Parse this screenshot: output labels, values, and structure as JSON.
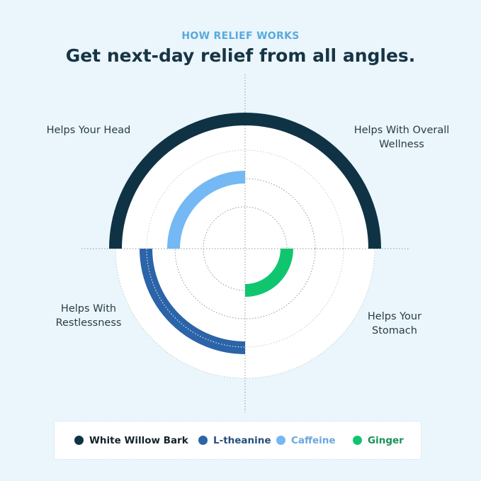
{
  "header": {
    "eyebrow": "HOW RELIEF WORKS",
    "title": "Get next-day relief from all angles."
  },
  "quadrants": {
    "top_left": "Helps Your Head",
    "top_right": "Helps With Overall Wellness",
    "bottom_left": "Helps With Restlessness",
    "bottom_right": "Helps Your Stomach"
  },
  "legend": [
    {
      "label": "White Willow Bark",
      "color": "#0f3344"
    },
    {
      "label": "L-theanine",
      "color": "#2b64a8"
    },
    {
      "label": "Caffeine",
      "color": "#74b8f4"
    },
    {
      "label": "Ginger",
      "color": "#0fc66f"
    }
  ],
  "colors": {
    "background": "#eaf6fc",
    "eyebrow": "#5aa9dc",
    "title": "#173443"
  }
}
